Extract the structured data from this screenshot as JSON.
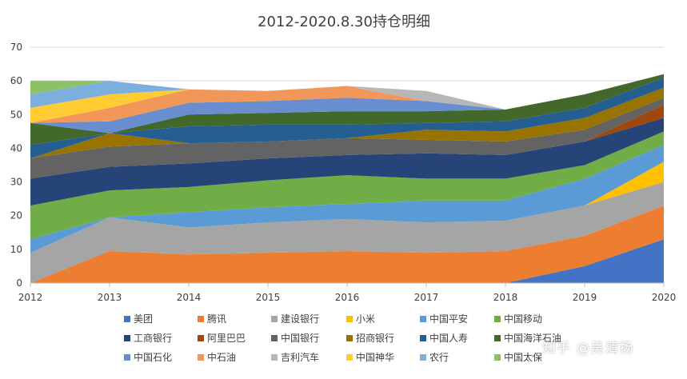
{
  "chart_data": {
    "type": "area",
    "title": "2012-2020.8.30持仓明细",
    "xlabel": "",
    "ylabel": "",
    "ylim": [
      0,
      70
    ],
    "yticks": [
      0,
      10,
      20,
      30,
      40,
      50,
      60,
      70
    ],
    "grid": true,
    "legend_position": "bottom",
    "x": [
      "2012",
      "2013",
      "2014",
      "2015",
      "2016",
      "2017",
      "2018",
      "2019",
      "2020"
    ],
    "series": [
      {
        "name": "美团",
        "color": "#4472C4",
        "values": [
          0,
          0,
          0,
          0,
          0,
          0,
          0,
          5,
          13
        ]
      },
      {
        "name": "腾讯",
        "color": "#ED7D31",
        "values": [
          0,
          9.5,
          8.5,
          9,
          9.5,
          9,
          9.5,
          9,
          10
        ]
      },
      {
        "name": "建设银行",
        "color": "#A5A5A5",
        "values": [
          9,
          10,
          8,
          9,
          9.5,
          9,
          9,
          9,
          7
        ]
      },
      {
        "name": "小米",
        "color": "#FFC000",
        "values": [
          0,
          0,
          0,
          0,
          0,
          0,
          0,
          0,
          6
        ]
      },
      {
        "name": "中国平安",
        "color": "#5B9BD5",
        "values": [
          4,
          0,
          4.5,
          4.5,
          4.5,
          6.5,
          6,
          8,
          5
        ]
      },
      {
        "name": "中国移动",
        "color": "#70AD47",
        "values": [
          10,
          8,
          7.5,
          8,
          8.5,
          6.5,
          6.5,
          4,
          4
        ]
      },
      {
        "name": "工商银行",
        "color": "#264478",
        "values": [
          8,
          7,
          7,
          6.5,
          6,
          7.5,
          7,
          7,
          4
        ]
      },
      {
        "name": "阿里巴巴",
        "color": "#9E480E",
        "values": [
          0,
          0,
          0,
          0,
          0,
          0,
          0,
          0,
          4
        ]
      },
      {
        "name": "中国银行",
        "color": "#636363",
        "values": [
          6,
          6,
          6,
          5,
          5,
          4,
          4,
          3.5,
          2
        ]
      },
      {
        "name": "招商银行",
        "color": "#997300",
        "values": [
          0,
          4,
          0,
          0,
          0,
          3,
          3,
          3.5,
          3
        ]
      },
      {
        "name": "中国人寿",
        "color": "#255E91",
        "values": [
          4,
          0,
          5,
          5,
          4,
          2,
          3,
          3,
          3
        ]
      },
      {
        "name": "中国海洋石油",
        "color": "#43682B",
        "values": [
          6.5,
          0,
          3.5,
          3.5,
          4,
          3.5,
          3.5,
          4,
          1
        ]
      },
      {
        "name": "中国石化",
        "color": "#698ED0",
        "values": [
          0,
          3.5,
          3.5,
          3.5,
          4,
          3,
          0,
          0,
          0
        ]
      },
      {
        "name": "中石油",
        "color": "#F1975A",
        "values": [
          0,
          4,
          4,
          3,
          3.5,
          0,
          0,
          0,
          0
        ]
      },
      {
        "name": "吉利汽车",
        "color": "#B7B7B7",
        "values": [
          0,
          0,
          0,
          0,
          0,
          3,
          0,
          0,
          0
        ]
      },
      {
        "name": "中国神华",
        "color": "#FFCD33",
        "values": [
          4.5,
          4,
          0,
          0,
          0,
          0,
          0,
          0,
          0
        ]
      },
      {
        "name": "农行",
        "color": "#7CAFDD",
        "values": [
          4,
          4,
          0,
          0,
          0,
          0,
          0,
          0,
          0
        ]
      },
      {
        "name": "中国太保",
        "color": "#8CC168",
        "values": [
          4,
          0,
          0,
          0,
          0,
          0,
          0,
          0,
          0
        ]
      }
    ]
  },
  "watermark": "知乎 @吴清扬"
}
